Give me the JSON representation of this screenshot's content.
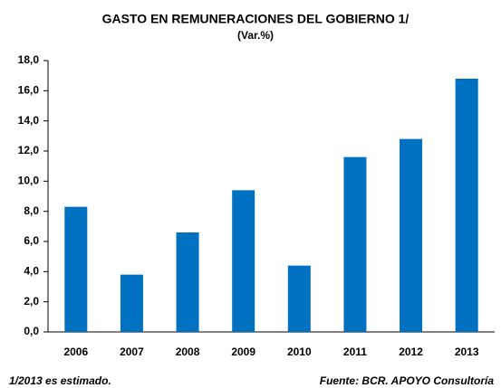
{
  "chart_data": {
    "type": "bar",
    "title": "GASTO EN REMUNERACIONES  DEL GOBIERNO 1/",
    "subtitle": "(Var.%)",
    "categories": [
      "2006",
      "2007",
      "2008",
      "2009",
      "2010",
      "2011",
      "2012",
      "2013"
    ],
    "values": [
      8.3,
      3.8,
      6.6,
      9.4,
      4.4,
      11.6,
      12.8,
      16.8
    ],
    "color": "#0070c0",
    "ylim": [
      0,
      18
    ],
    "yticks": [
      {
        "value": 0,
        "label": "0,0"
      },
      {
        "value": 2,
        "label": "2,0"
      },
      {
        "value": 4,
        "label": "4,0"
      },
      {
        "value": 6,
        "label": "6,0"
      },
      {
        "value": 8,
        "label": "8,0"
      },
      {
        "value": 10,
        "label": "10,0"
      },
      {
        "value": 12,
        "label": "12,0"
      },
      {
        "value": 14,
        "label": "14,0"
      },
      {
        "value": 16,
        "label": "16,0"
      },
      {
        "value": 18,
        "label": "18,0"
      }
    ],
    "footnote": "1/2013 es estimado.",
    "source": "Fuente: BCR. APOYO Consultoría"
  }
}
